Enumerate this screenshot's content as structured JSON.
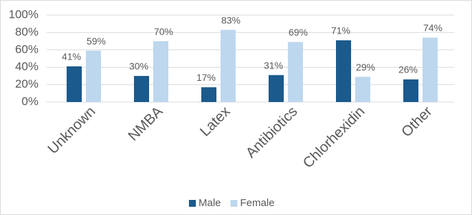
{
  "chart_data": {
    "type": "bar",
    "categories": [
      "Unknown",
      "NMBA",
      "Latex",
      "Antibiotics",
      "Chlorhexidin",
      "Other"
    ],
    "series": [
      {
        "name": "Male",
        "color": "#1b5a8c",
        "values": [
          41,
          30,
          17,
          31,
          71,
          26
        ],
        "value_labels": [
          "41%",
          "30%",
          "17%",
          "31%",
          "71%",
          "26%"
        ]
      },
      {
        "name": "Female",
        "color": "#bdd7ee",
        "values": [
          59,
          70,
          83,
          69,
          29,
          74
        ],
        "value_labels": [
          "59%",
          "70%",
          "83%",
          "69%",
          "29%",
          "74%"
        ]
      }
    ],
    "ylim": [
      0,
      100
    ],
    "yticks": [
      {
        "value": 0,
        "label": "0%"
      },
      {
        "value": 20,
        "label": "20%"
      },
      {
        "value": 40,
        "label": "40%"
      },
      {
        "value": 60,
        "label": "60%"
      },
      {
        "value": 80,
        "label": "80%"
      },
      {
        "value": 100,
        "label": "100%"
      }
    ],
    "grid": true,
    "legend": "bottom"
  }
}
